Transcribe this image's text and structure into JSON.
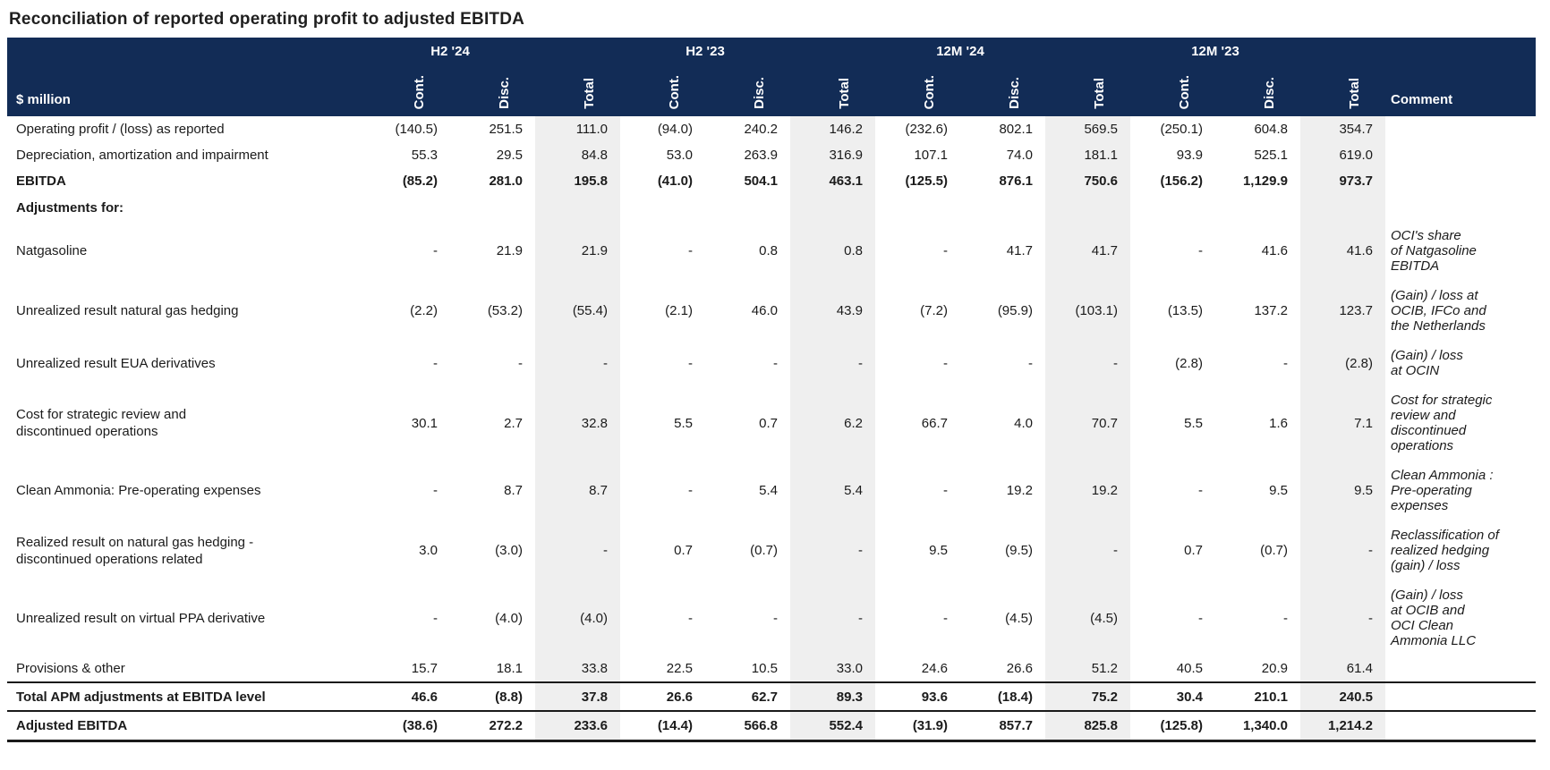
{
  "title": "Reconciliation of reported operating profit to adjusted EBITDA",
  "colors": {
    "header_bg": "#122c56",
    "header_text": "#ffffff",
    "total_column_stripe": "#efefef",
    "rule_line": "#1a1a1a"
  },
  "table": {
    "unit_label": "$ million",
    "comment_label": "Comment",
    "groups": [
      "H2 '24",
      "H2 '23",
      "12M '24",
      "12M '23"
    ],
    "sub_columns": [
      "Cont.",
      "Disc.",
      "Total"
    ],
    "rows": [
      {
        "label": "Operating profit / (loss) as reported",
        "kind": "normal",
        "values": [
          "(140.5)",
          "251.5",
          "111.0",
          "(94.0)",
          "240.2",
          "146.2",
          "(232.6)",
          "802.1",
          "569.5",
          "(250.1)",
          "604.8",
          "354.7"
        ],
        "comment": ""
      },
      {
        "label": "Depreciation, amortization and impairment",
        "kind": "normal",
        "values": [
          "55.3",
          "29.5",
          "84.8",
          "53.0",
          "263.9",
          "316.9",
          "107.1",
          "74.0",
          "181.1",
          "93.9",
          "525.1",
          "619.0"
        ],
        "comment": ""
      },
      {
        "label": "EBITDA",
        "kind": "bold",
        "values": [
          "(85.2)",
          "281.0",
          "195.8",
          "(41.0)",
          "504.1",
          "463.1",
          "(125.5)",
          "876.1",
          "750.6",
          "(156.2)",
          "1,129.9",
          "973.7"
        ],
        "comment": ""
      },
      {
        "label": "Adjustments for:",
        "kind": "section",
        "values": [
          "",
          "",
          "",
          "",
          "",
          "",
          "",
          "",
          "",
          "",
          "",
          ""
        ],
        "comment": ""
      },
      {
        "label": "Natgasoline",
        "kind": "normal",
        "values": [
          "-",
          "21.9",
          "21.9",
          "-",
          "0.8",
          "0.8",
          "-",
          "41.7",
          "41.7",
          "-",
          "41.6",
          "41.6"
        ],
        "comment": "OCI's share\nof Natgasoline\nEBITDA"
      },
      {
        "label": "Unrealized result natural gas hedging",
        "kind": "normal",
        "values": [
          "(2.2)",
          "(53.2)",
          "(55.4)",
          "(2.1)",
          "46.0",
          "43.9",
          "(7.2)",
          "(95.9)",
          "(103.1)",
          "(13.5)",
          "137.2",
          "123.7"
        ],
        "comment": "(Gain) / loss at\nOCIB, IFCo and\nthe Netherlands"
      },
      {
        "label": "Unrealized result EUA derivatives",
        "kind": "normal",
        "values": [
          "-",
          "-",
          "-",
          "-",
          "-",
          "-",
          "-",
          "-",
          "-",
          "(2.8)",
          "-",
          "(2.8)"
        ],
        "comment": "(Gain) / loss\nat OCIN"
      },
      {
        "label": "Cost for strategic review and\ndiscontinued operations",
        "kind": "normal",
        "values": [
          "30.1",
          "2.7",
          "32.8",
          "5.5",
          "0.7",
          "6.2",
          "66.7",
          "4.0",
          "70.7",
          "5.5",
          "1.6",
          "7.1"
        ],
        "comment": "Cost for strategic\nreview and\ndiscontinued\noperations"
      },
      {
        "label": "Clean Ammonia: Pre-operating expenses",
        "kind": "normal",
        "values": [
          "-",
          "8.7",
          "8.7",
          "-",
          "5.4",
          "5.4",
          "-",
          "19.2",
          "19.2",
          "-",
          "9.5",
          "9.5"
        ],
        "comment": "Clean Ammonia :\nPre-operating\nexpenses"
      },
      {
        "label": "Realized result on natural gas hedging -\ndiscontinued operations related",
        "kind": "normal",
        "values": [
          "3.0",
          "(3.0)",
          "-",
          "0.7",
          "(0.7)",
          "-",
          "9.5",
          "(9.5)",
          "-",
          "0.7",
          "(0.7)",
          "-"
        ],
        "comment": "Reclassification of\nrealized hedging\n(gain) / loss"
      },
      {
        "label": "Unrealized result on virtual PPA derivative",
        "kind": "normal",
        "values": [
          "-",
          "(4.0)",
          "(4.0)",
          "-",
          "-",
          "-",
          "-",
          "(4.5)",
          "(4.5)",
          "-",
          "-",
          "-"
        ],
        "comment": "(Gain) / loss\nat OCIB and\nOCI Clean\nAmmonia LLC"
      },
      {
        "label": "Provisions & other",
        "kind": "normal",
        "values": [
          "15.7",
          "18.1",
          "33.8",
          "22.5",
          "10.5",
          "33.0",
          "24.6",
          "26.6",
          "51.2",
          "40.5",
          "20.9",
          "61.4"
        ],
        "comment": ""
      },
      {
        "label": "Total APM adjustments at EBITDA level",
        "kind": "total",
        "values": [
          "46.6",
          "(8.8)",
          "37.8",
          "26.6",
          "62.7",
          "89.3",
          "93.6",
          "(18.4)",
          "75.2",
          "30.4",
          "210.1",
          "240.5"
        ],
        "comment": ""
      },
      {
        "label": "Adjusted EBITDA",
        "kind": "grand",
        "values": [
          "(38.6)",
          "272.2",
          "233.6",
          "(14.4)",
          "566.8",
          "552.4",
          "(31.9)",
          "857.7",
          "825.8",
          "(125.8)",
          "1,340.0",
          "1,214.2"
        ],
        "comment": ""
      }
    ]
  }
}
